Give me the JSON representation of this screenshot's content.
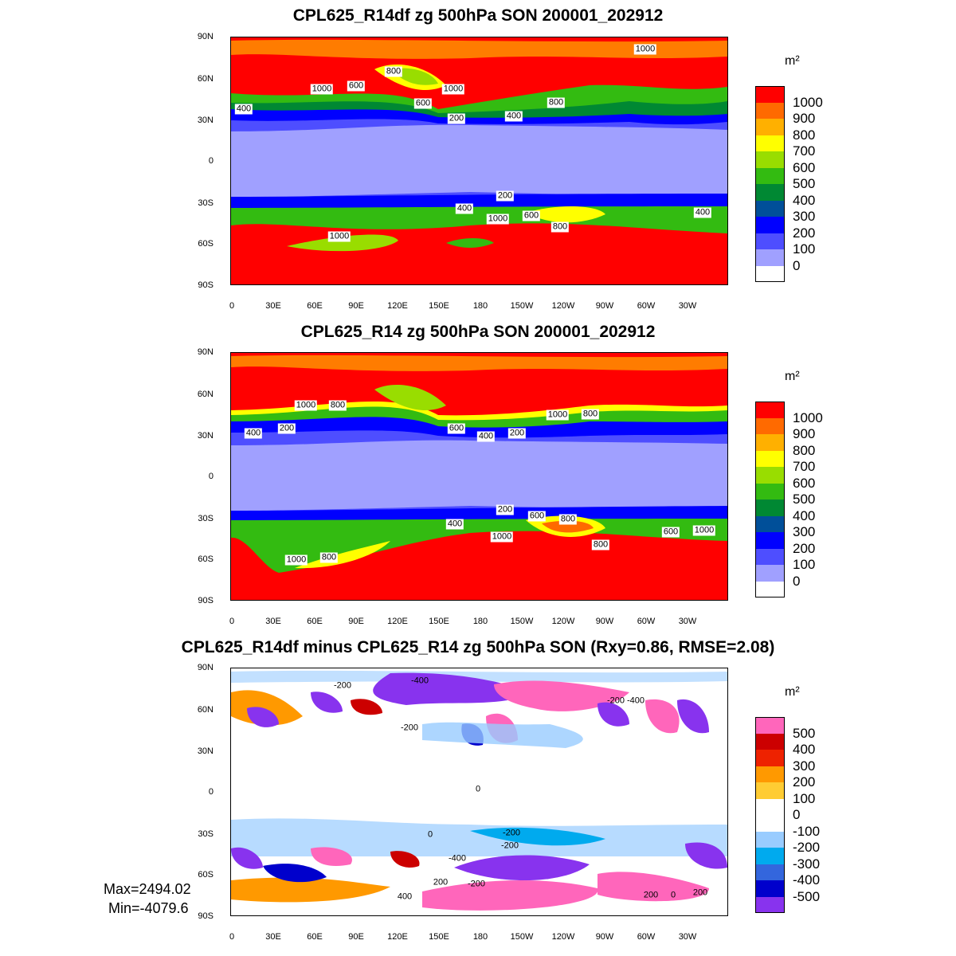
{
  "unit_label": "m²",
  "axis": {
    "lat_labels": [
      "90N",
      "60N",
      "30N",
      "0",
      "30S",
      "60S",
      "90S"
    ],
    "lon_labels": [
      "0",
      "30E",
      "60E",
      "90E",
      "120E",
      "150E",
      "180",
      "150W",
      "120W",
      "90W",
      "60W",
      "30W"
    ]
  },
  "panels": [
    {
      "title": "CPL625_R14df zg 500hPa SON 200001_202912",
      "legend_values": [
        "1000",
        "900",
        "800",
        "700",
        "600",
        "500",
        "400",
        "300",
        "200",
        "100",
        "0"
      ],
      "legend_colors": [
        "#ff0000",
        "#ff6a00",
        "#ffb000",
        "#ffff00",
        "#99dd00",
        "#33bb11",
        "#008833",
        "#004f99",
        "#0000ff",
        "#4e4eff",
        "#a0a0ff",
        "#ffffff"
      ],
      "contour_labels": [
        "1000",
        "1000",
        "600",
        "800",
        "600",
        "1000",
        "400",
        "200",
        "400",
        "800",
        "200",
        "400",
        "1000",
        "600",
        "800",
        "400",
        "1000"
      ]
    },
    {
      "title": "CPL625_R14 zg 500hPa SON 200001_202912",
      "legend_values": [
        "1000",
        "900",
        "800",
        "700",
        "600",
        "500",
        "400",
        "300",
        "200",
        "100",
        "0"
      ],
      "legend_colors": [
        "#ff0000",
        "#ff6a00",
        "#ffb000",
        "#ffff00",
        "#99dd00",
        "#33bb11",
        "#008833",
        "#004f99",
        "#0000ff",
        "#4e4eff",
        "#a0a0ff",
        "#ffffff"
      ],
      "contour_labels": [
        "1000",
        "800",
        "400",
        "200",
        "600",
        "400",
        "200",
        "1000",
        "800",
        "200",
        "600",
        "800",
        "400",
        "1000",
        "800",
        "600",
        "1000",
        "1000",
        "800"
      ]
    },
    {
      "title": "CPL625_R14df minus CPL625_R14 zg 500hPa SON (Rxy=0.86, RMSE=2.08)",
      "legend_values": [
        "500",
        "400",
        "300",
        "200",
        "100",
        "0",
        "-100",
        "-200",
        "-300",
        "-400",
        "-500"
      ],
      "legend_colors": [
        "#ff66bb",
        "#cc0000",
        "#ee2200",
        "#ff9900",
        "#ffcc33",
        "#ffffff",
        "#ffffff",
        "#99ccff",
        "#00aaee",
        "#3366dd",
        "#0000cc",
        "#8833ee"
      ],
      "contour_labels": [
        "-200",
        "-400",
        "-200",
        "-200",
        "-400",
        "-200",
        "0",
        "0",
        "-200",
        "-400",
        "200",
        "-200",
        "400",
        "200",
        "0",
        "200"
      ],
      "max_label": "Max=2494.02",
      "min_label": "Min=-4079.6"
    }
  ]
}
